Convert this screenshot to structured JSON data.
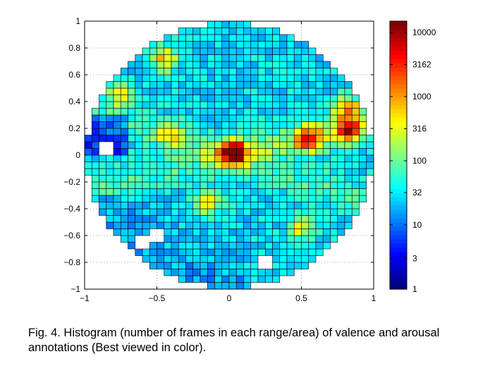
{
  "chart_data": {
    "type": "heatmap",
    "title": "",
    "xlabel": "",
    "ylabel": "",
    "xlim": [
      -1,
      1
    ],
    "ylim": [
      -1,
      1
    ],
    "x_ticks": [
      {
        "value": -1,
        "label": "−1"
      },
      {
        "value": -0.5,
        "label": "−0.5"
      },
      {
        "value": 0,
        "label": "0"
      },
      {
        "value": 0.5,
        "label": "0.5"
      },
      {
        "value": 1,
        "label": "1"
      }
    ],
    "y_ticks": [
      {
        "value": 1,
        "label": "1"
      },
      {
        "value": 0.8,
        "label": "0.8"
      },
      {
        "value": 0.6,
        "label": "0.6"
      },
      {
        "value": 0.4,
        "label": "0.4"
      },
      {
        "value": 0.2,
        "label": "0.2"
      },
      {
        "value": 0,
        "label": "0"
      },
      {
        "value": -0.2,
        "label": "−0.2"
      },
      {
        "value": -0.4,
        "label": "−0.4"
      },
      {
        "value": -0.6,
        "label": "−0.6"
      },
      {
        "value": -0.8,
        "label": "−0.8"
      },
      {
        "value": -1,
        "label": "−1"
      }
    ],
    "grid": "dotted",
    "grid_cells": 40,
    "region": "disk of radius 1 centred at (0, 0), with gaps near (-0.5,-0.6), (-0.6,-0.65), (-0.85,0.05), (0.25,-0.8)",
    "colorscale": "jet",
    "color_scale_type": "log",
    "colorbar": {
      "range": [
        1,
        15000
      ],
      "ticks": [
        {
          "value": 10000,
          "label": "10000"
        },
        {
          "value": 3162,
          "label": "3162"
        },
        {
          "value": 1000,
          "label": "1000"
        },
        {
          "value": 316,
          "label": "316"
        },
        {
          "value": 100,
          "label": "100"
        },
        {
          "value": 32,
          "label": "32"
        },
        {
          "value": 10,
          "label": "10"
        },
        {
          "value": 3,
          "label": "3"
        },
        {
          "value": 1,
          "label": "1"
        }
      ]
    },
    "hotspots": [
      {
        "x": 0.03,
        "y": 0.02,
        "count": 10000
      },
      {
        "x": 0.55,
        "y": 0.12,
        "count": 3000
      },
      {
        "x": 0.82,
        "y": 0.18,
        "count": 3000
      },
      {
        "x": 0.82,
        "y": 0.35,
        "count": 1500
      },
      {
        "x": -0.45,
        "y": 0.72,
        "count": 1000
      },
      {
        "x": -0.75,
        "y": 0.45,
        "count": 600
      },
      {
        "x": -0.4,
        "y": 0.15,
        "count": 600
      },
      {
        "x": -0.15,
        "y": -0.35,
        "count": 600
      },
      {
        "x": 0.5,
        "y": -0.55,
        "count": 500
      }
    ]
  },
  "caption": {
    "text": "Fig. 4. Histogram (number of frames in each range/area) of valence and arousal annotations (Best viewed in color)."
  }
}
